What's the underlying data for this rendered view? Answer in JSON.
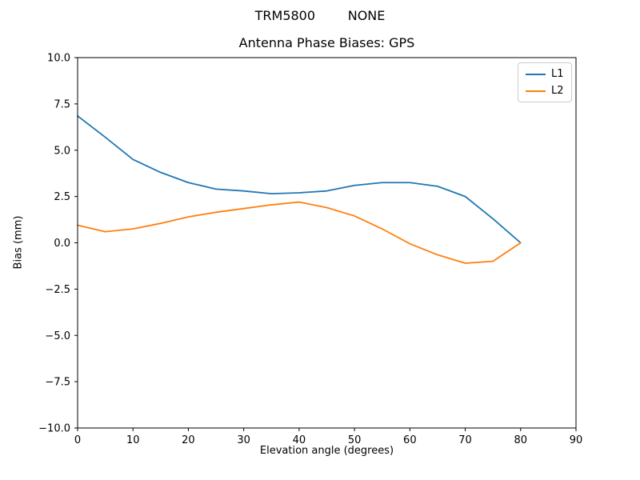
{
  "window": {
    "background": "#ffffff",
    "axes_frame_color": "#000000",
    "legend_border_color": "#cccccc"
  },
  "chart_data": {
    "type": "line",
    "suptitle": "TRM5800        NONE",
    "title": "Antenna Phase Biases: GPS",
    "xlabel": "Elevation angle (degrees)",
    "ylabel": "Bias (mm)",
    "xlim": [
      0,
      90
    ],
    "ylim": [
      -10,
      10
    ],
    "grid": false,
    "legend_position": "upper right",
    "x": [
      0,
      5,
      10,
      15,
      20,
      25,
      30,
      35,
      40,
      45,
      50,
      55,
      60,
      65,
      70,
      75,
      80
    ],
    "series": [
      {
        "name": "L1",
        "color": "#1f77b4",
        "values": [
          6.85,
          5.7,
          4.5,
          3.8,
          3.25,
          2.9,
          2.8,
          2.65,
          2.7,
          2.8,
          3.1,
          3.25,
          3.25,
          3.05,
          2.5,
          1.3,
          0.0
        ]
      },
      {
        "name": "L2",
        "color": "#ff7f0e",
        "values": [
          0.95,
          0.6,
          0.75,
          1.05,
          1.4,
          1.65,
          1.85,
          2.05,
          2.2,
          1.9,
          1.45,
          0.75,
          -0.05,
          -0.65,
          -1.1,
          -1.0,
          0.0
        ]
      }
    ],
    "xticks": {
      "values": [
        0,
        10,
        20,
        30,
        40,
        50,
        60,
        70,
        80,
        90
      ],
      "labels": [
        "0",
        "10",
        "20",
        "30",
        "40",
        "50",
        "60",
        "70",
        "80",
        "90"
      ]
    },
    "yticks": {
      "values": [
        -10,
        -7.5,
        -5,
        -2.5,
        0,
        2.5,
        5,
        7.5,
        10
      ],
      "labels": [
        "−10.0",
        "−7.5",
        "−5.0",
        "−2.5",
        "0.0",
        "2.5",
        "5.0",
        "7.5",
        "10.0"
      ]
    }
  }
}
